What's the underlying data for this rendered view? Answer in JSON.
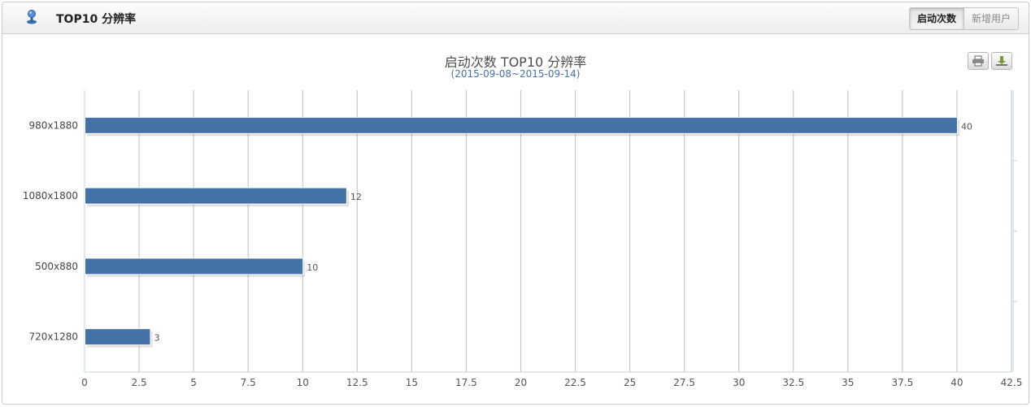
{
  "header": {
    "title": "TOP10 分辨率",
    "tabs": [
      {
        "label": "启动次数",
        "active": true
      },
      {
        "label": "新增用户",
        "active": false
      }
    ]
  },
  "toolbar": {
    "print_icon": "printer-icon",
    "export_icon": "download-icon"
  },
  "chart_data": {
    "type": "bar",
    "orientation": "horizontal",
    "title": "启动次数 TOP10 分辨率",
    "subtitle": "(2015-09-08~2015-09-14)",
    "categories": [
      "980x1880",
      "1080x1800",
      "500x880",
      "720x1280"
    ],
    "values": [
      40,
      12,
      10,
      3
    ],
    "xlim": [
      0,
      42.5
    ],
    "xticks": [
      "0",
      "2.5",
      "5",
      "7.5",
      "10",
      "12.5",
      "15",
      "17.5",
      "20",
      "22.5",
      "25",
      "27.5",
      "30",
      "32.5",
      "35",
      "37.5",
      "40",
      "42.5"
    ],
    "grid": true,
    "bar_color": "#4572a7",
    "data_labels": true
  }
}
